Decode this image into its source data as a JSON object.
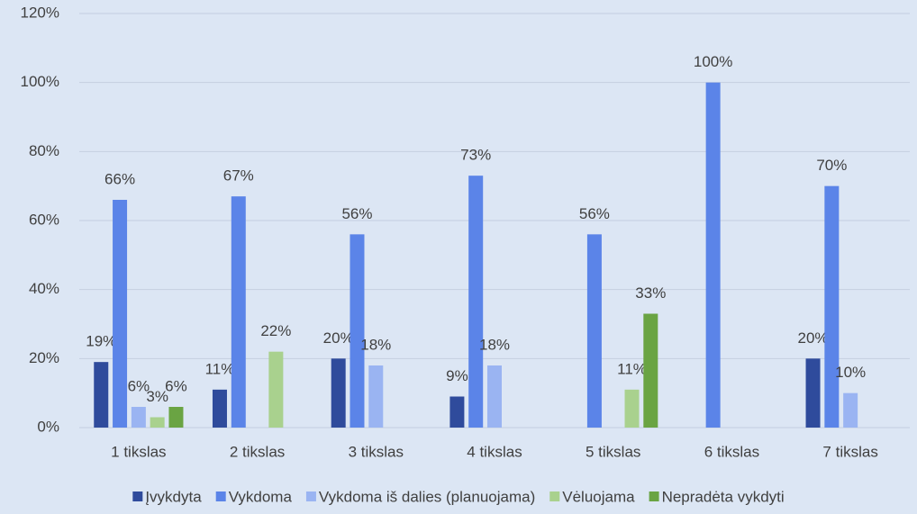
{
  "chart_data": {
    "type": "bar",
    "categories": [
      "1 tikslas",
      "2 tikslas",
      "3 tikslas",
      "4 tikslas",
      "5 tikslas",
      "6 tikslas",
      "7 tikslas"
    ],
    "series": [
      {
        "name": "Įvykdyta",
        "color": "#2f4b9c",
        "values": [
          19,
          11,
          20,
          9,
          null,
          null,
          20
        ],
        "value_labels": [
          "19%",
          "11%",
          "20%",
          "9%",
          null,
          null,
          "20%"
        ]
      },
      {
        "name": "Vykdoma",
        "color": "#5b84e8",
        "values": [
          66,
          67,
          56,
          73,
          56,
          100,
          70
        ],
        "value_labels": [
          "66%",
          "67%",
          "56%",
          "73%",
          "56%",
          "100%",
          "70%"
        ]
      },
      {
        "name": "Vykdoma iš dalies (planuojama)",
        "color": "#9ab4f2",
        "values": [
          6,
          null,
          18,
          18,
          null,
          null,
          10
        ],
        "value_labels": [
          "6%",
          null,
          "18%",
          "18%",
          null,
          null,
          "10%"
        ]
      },
      {
        "name": "Vėluojama",
        "color": "#a9d18e",
        "values": [
          3,
          22,
          null,
          null,
          11,
          null,
          null
        ],
        "value_labels": [
          "3%",
          "22%",
          null,
          null,
          "11%",
          null,
          null
        ]
      },
      {
        "name": "Nepradėta vykdyti",
        "color": "#6aa443",
        "values": [
          6,
          null,
          null,
          null,
          33,
          null,
          null
        ],
        "value_labels": [
          "6%",
          null,
          null,
          null,
          "33%",
          null,
          null
        ]
      }
    ],
    "ylim": [
      0,
      120
    ],
    "yticks": [
      {
        "value": 0,
        "label": "0%"
      },
      {
        "value": 20,
        "label": "20%"
      },
      {
        "value": 40,
        "label": "40%"
      },
      {
        "value": 60,
        "label": "60%"
      },
      {
        "value": 80,
        "label": "80%"
      },
      {
        "value": 100,
        "label": "100%"
      },
      {
        "value": 120,
        "label": "120%"
      }
    ],
    "grid": true,
    "legend": "bottom"
  }
}
